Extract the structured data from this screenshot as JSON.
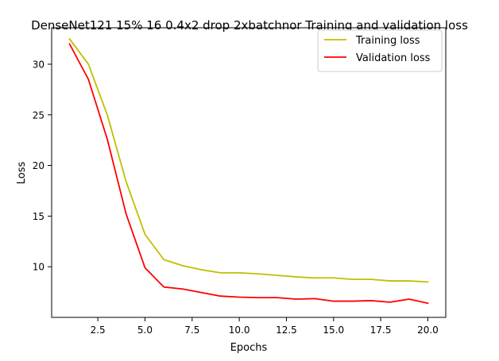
{
  "chart_data": {
    "type": "line",
    "title": "DenseNet121 15% 16 0.4x2 drop 2xbatchnor Training and validation loss",
    "xlabel": "Epochs",
    "ylabel": "Loss",
    "xlim": [
      0.05,
      20.95
    ],
    "ylim": [
      5.0,
      33.6
    ],
    "xticks": [
      2.5,
      5.0,
      7.5,
      10.0,
      12.5,
      15.0,
      17.5,
      20.0
    ],
    "xtick_labels": [
      "2.5",
      "5.0",
      "7.5",
      "10.0",
      "12.5",
      "15.0",
      "17.5",
      "20.0"
    ],
    "yticks": [
      10,
      15,
      20,
      25,
      30
    ],
    "ytick_labels": [
      "10",
      "15",
      "20",
      "25",
      "30"
    ],
    "grid": false,
    "legend_position": "top-right",
    "x": [
      1,
      2,
      3,
      4,
      5,
      6,
      7,
      8,
      9,
      10,
      11,
      12,
      13,
      14,
      15,
      16,
      17,
      18,
      19,
      20
    ],
    "series": [
      {
        "name": "Training loss",
        "color": "#bfbf00",
        "values": [
          32.5,
          30.0,
          25.0,
          18.4,
          13.2,
          10.7,
          10.1,
          9.7,
          9.4,
          9.4,
          9.3,
          9.15,
          9.0,
          8.9,
          8.9,
          8.75,
          8.75,
          8.6,
          8.6,
          8.5
        ]
      },
      {
        "name": "Validation loss",
        "color": "#ff0000",
        "values": [
          32.0,
          28.5,
          22.6,
          15.2,
          9.9,
          8.0,
          7.8,
          7.45,
          7.1,
          7.0,
          6.95,
          6.95,
          6.8,
          6.85,
          6.6,
          6.6,
          6.65,
          6.5,
          6.8,
          6.4
        ]
      }
    ]
  }
}
